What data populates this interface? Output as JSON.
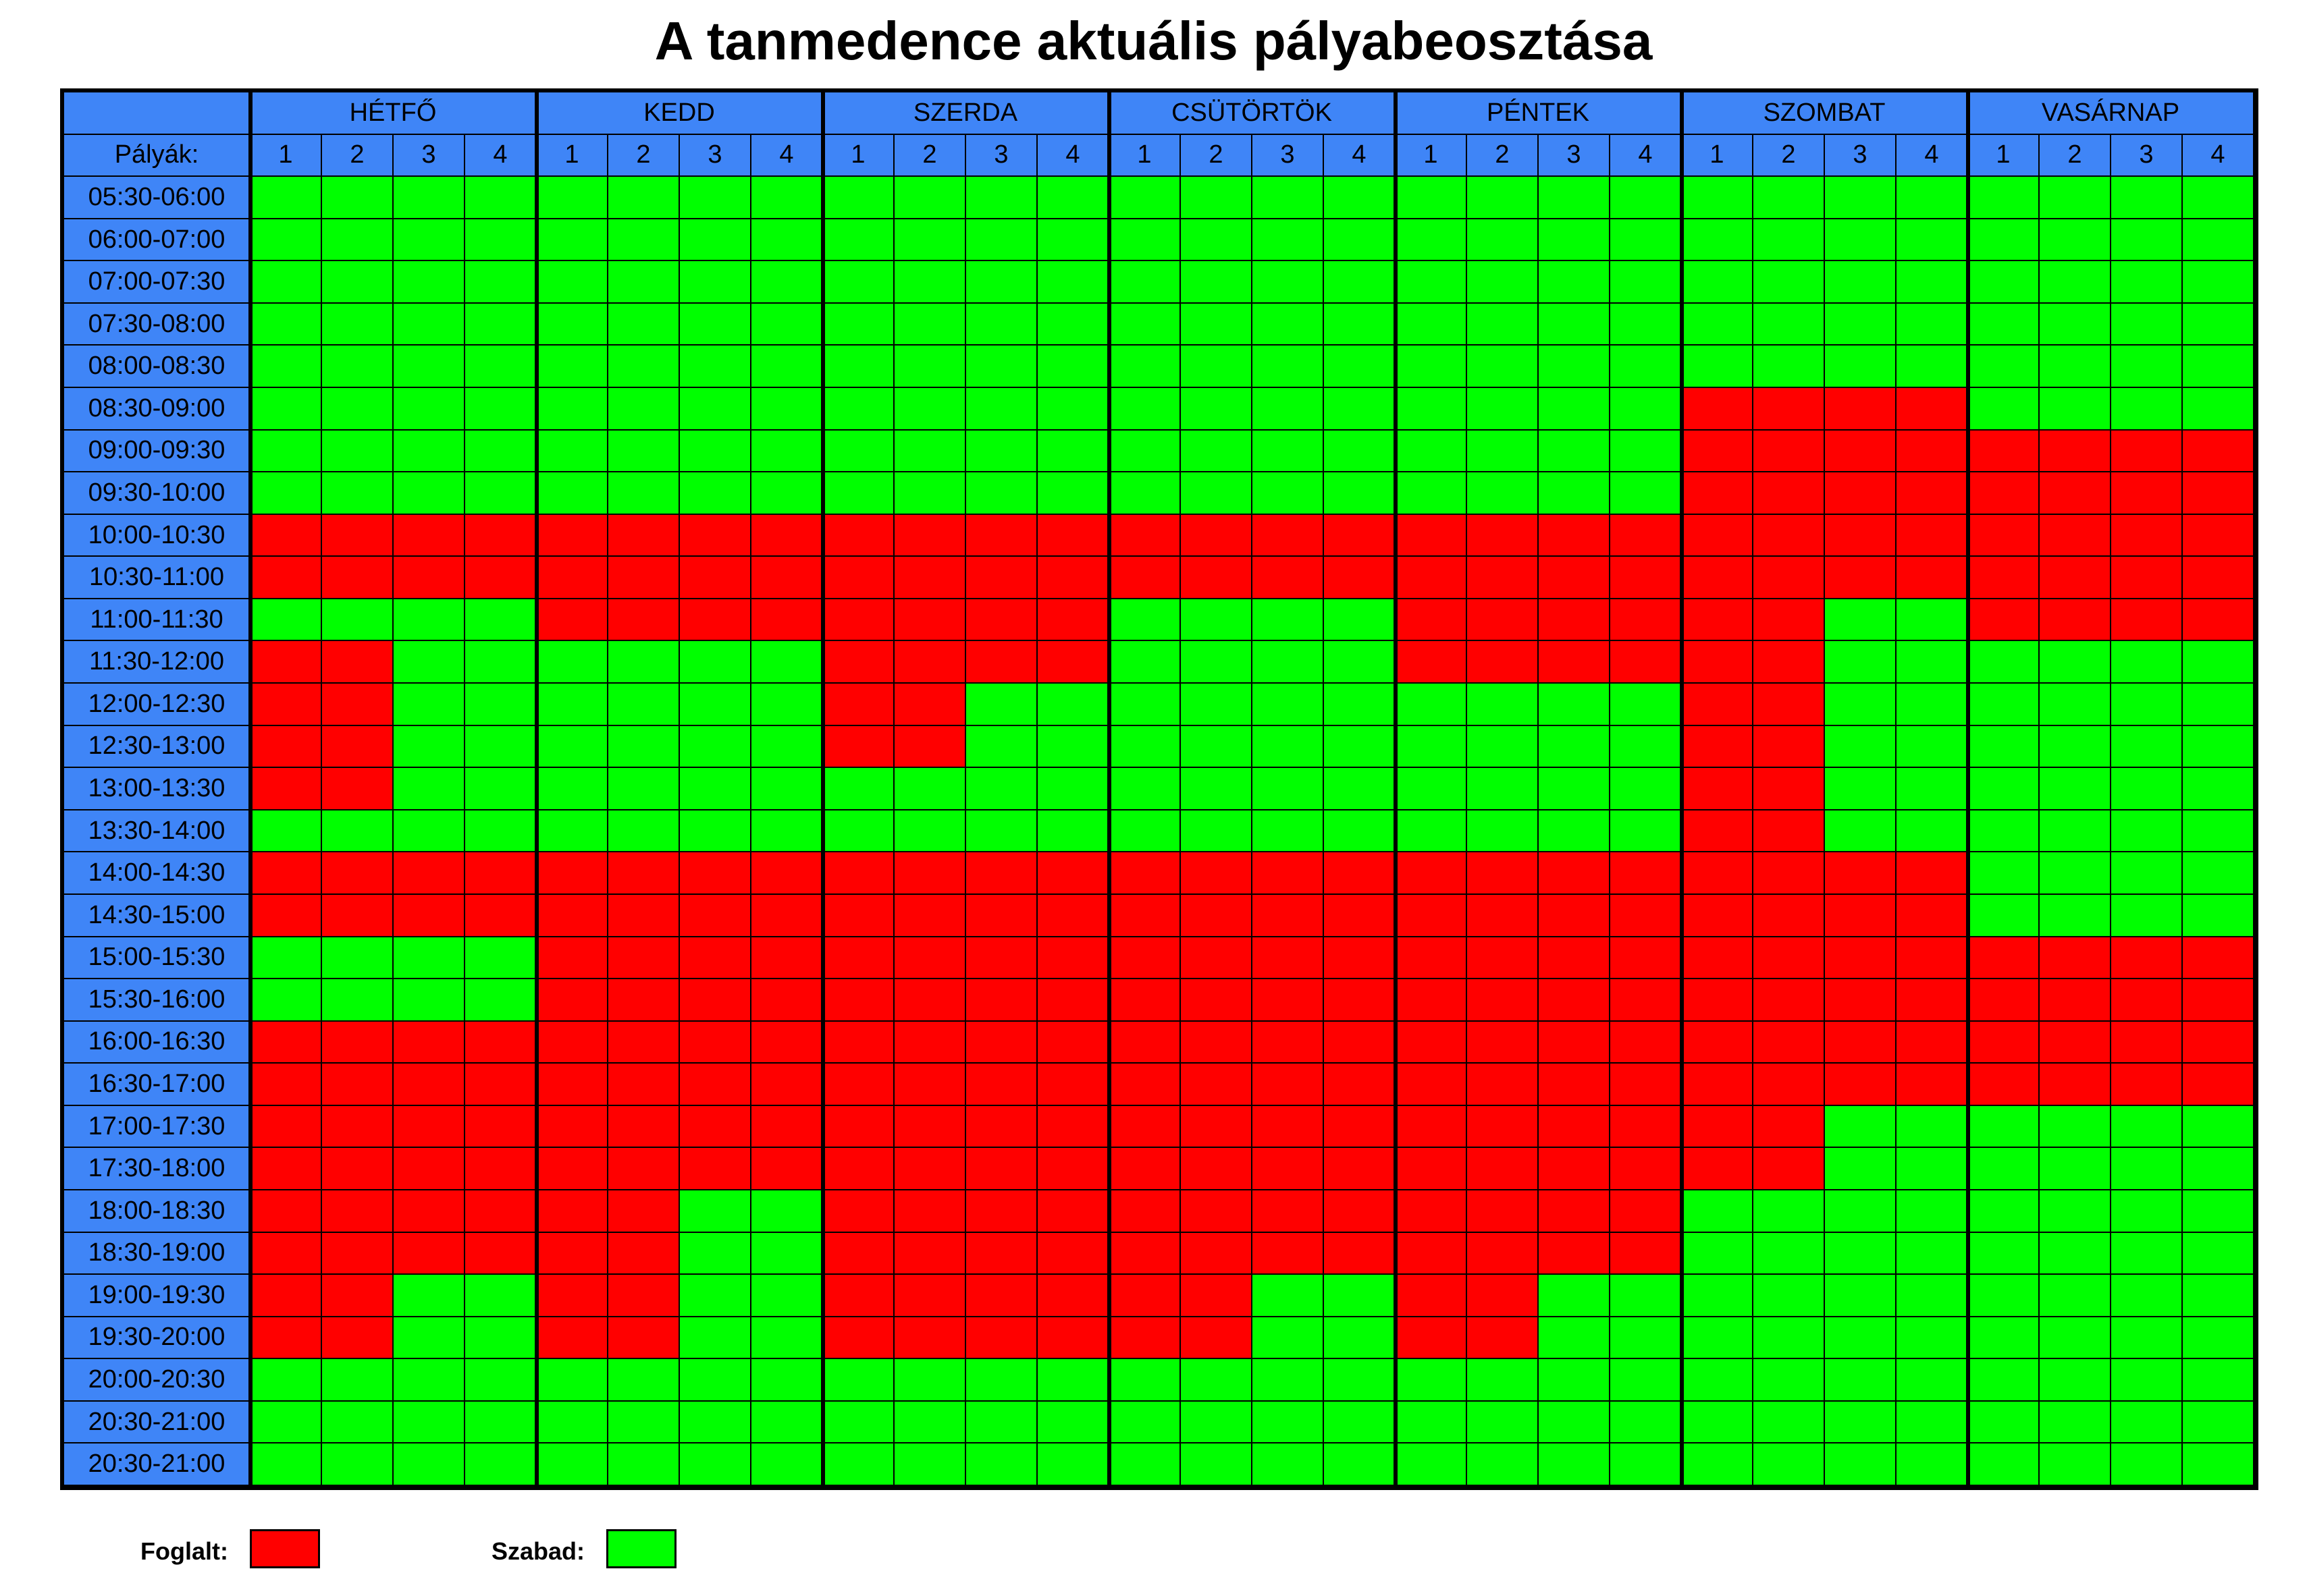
{
  "title": "A tanmedence aktuális pályabeosztása",
  "lane_label": "Pályák:",
  "days": [
    "HÉTFŐ",
    "KEDD",
    "SZERDA",
    "CSÜTÖRTÖK",
    "PÉNTEK",
    "SZOMBAT",
    "VASÁRNAP"
  ],
  "lanes": [
    "1",
    "2",
    "3",
    "4"
  ],
  "colors": {
    "busy": "#ff0000",
    "free": "#00ff00",
    "header": "#3f85f7"
  },
  "legend": {
    "busy_label": "Foglalt:",
    "free_label": "Szabad:"
  },
  "times": [
    "05:30-06:00",
    "06:00-07:00",
    "07:00-07:30",
    "07:30-08:00",
    "08:00-08:30",
    "08:30-09:00",
    "09:00-09:30",
    "09:30-10:00",
    "10:00-10:30",
    "10:30-11:00",
    "11:00-11:30",
    "11:30-12:00",
    "12:00-12:30",
    "12:30-13:00",
    "13:00-13:30",
    "13:30-14:00",
    "14:00-14:30",
    "14:30-15:00",
    "15:00-15:30",
    "15:30-16:00",
    "16:00-16:30",
    "16:30-17:00",
    "17:00-17:30",
    "17:30-18:00",
    "18:00-18:30",
    "18:30-19:00",
    "19:00-19:30",
    "19:30-20:00",
    "20:00-20:30",
    "20:30-21:00",
    "20:30-21:00"
  ],
  "schedule": [
    "GGGG GGGG GGGG GGGG GGGG GGGG GGGG",
    "GGGG GGGG GGGG GGGG GGGG GGGG GGGG",
    "GGGG GGGG GGGG GGGG GGGG GGGG GGGG",
    "GGGG GGGG GGGG GGGG GGGG GGGG GGGG",
    "GGGG GGGG GGGG GGGG GGGG GGGG GGGG",
    "GGGG GGGG GGGG GGGG GGGG RRRR GGGG",
    "GGGG GGGG GGGG GGGG GGGG RRRR RRRR",
    "GGGG GGGG GGGG GGGG GGGG RRRR RRRR",
    "RRRR RRRR RRRR RRRR RRRR RRRR RRRR",
    "RRRR RRRR RRRR RRRR RRRR RRRR RRRR",
    "GGGG RRRR RRRR GGGG RRRR RRGG RRRR",
    "RRGG GGGG RRRR GGGG RRRR RRGG GGGG",
    "RRGG GGGG RRGG GGGG GGGG RRGG GGGG",
    "RRGG GGGG RRGG GGGG GGGG RRGG GGGG",
    "RRGG GGGG GGGG GGGG GGGG RRGG GGGG",
    "GGGG GGGG GGGG GGGG GGGG RRGG GGGG",
    "RRRR RRRR RRRR RRRR RRRR RRRR GGGG",
    "RRRR RRRR RRRR RRRR RRRR RRRR GGGG",
    "GGGG RRRR RRRR RRRR RRRR RRRR RRRR",
    "GGGG RRRR RRRR RRRR RRRR RRRR RRRR",
    "RRRR RRRR RRRR RRRR RRRR RRRR RRRR",
    "RRRR RRRR RRRR RRRR RRRR RRRR RRRR",
    "RRRR RRRR RRRR RRRR RRRR RRGG GGGG",
    "RRRR RRRR RRRR RRRR RRRR RRGG GGGG",
    "RRRR RRGG RRRR RRRR RRRR GGGG GGGG",
    "RRRR RRGG RRRR RRRR RRRR GGGG GGGG",
    "RRGG RRGG RRRR RRGG RRGG GGGG GGGG",
    "RRGG RRGG RRRR RRGG RRGG GGGG GGGG",
    "GGGG GGGG GGGG GGGG GGGG GGGG GGGG",
    "GGGG GGGG GGGG GGGG GGGG GGGG GGGG",
    "GGGG GGGG GGGG GGGG GGGG GGGG GGGG"
  ]
}
